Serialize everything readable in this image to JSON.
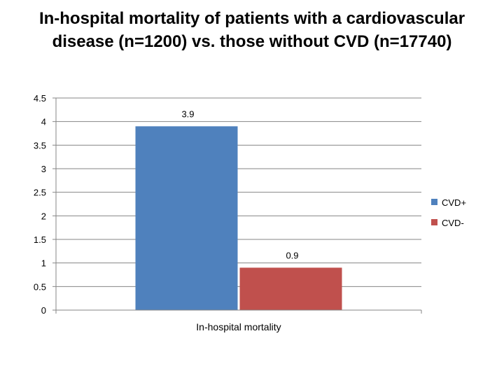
{
  "title_line1": "In-hospital mortality of patients with a cardiovascular",
  "title_line2": "disease (n=1200) vs. those without CVD (n=17740)",
  "chart_data": {
    "type": "bar",
    "title": "In-hospital mortality of patients with a cardiovascular disease (n=1200) vs. those without CVD (n=17740)",
    "categories": [
      "In-hospital mortality"
    ],
    "series": [
      {
        "name": "CVD+",
        "values": [
          3.9
        ],
        "color": "#4F81BD"
      },
      {
        "name": "CVD-",
        "values": [
          0.9
        ],
        "color": "#C0504D"
      }
    ],
    "yticks": [
      "0",
      "0.5",
      "1",
      "1.5",
      "2",
      "2.5",
      "3",
      "3.5",
      "4",
      "4.5"
    ],
    "ylim": [
      0,
      4.5
    ],
    "xlabel": "",
    "ylabel": "",
    "grid": true,
    "legend": "right"
  }
}
